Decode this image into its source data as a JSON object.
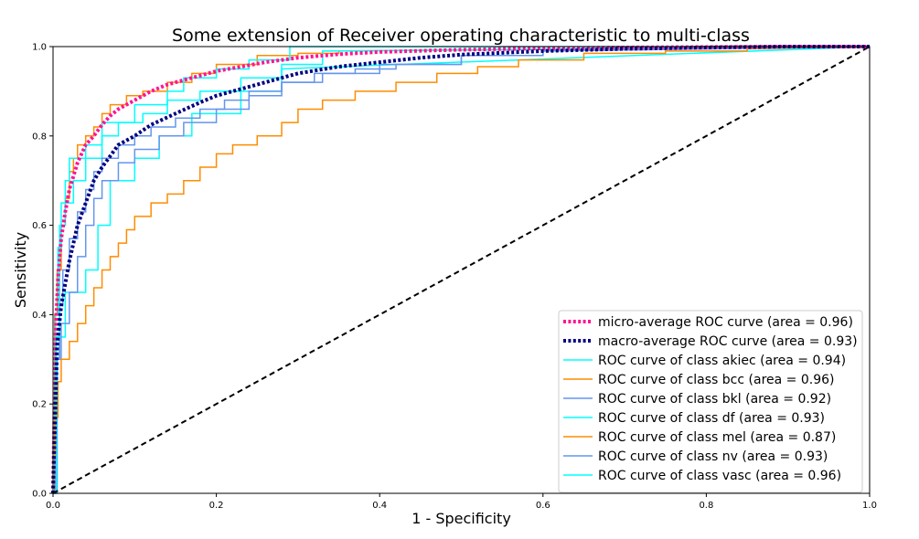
{
  "chart_data": {
    "type": "line",
    "title": "Some extension of Receiver operating characteristic to multi-class",
    "xlabel": "1 - Specificity",
    "ylabel": "Sensitivity",
    "xlim": [
      0.0,
      1.0
    ],
    "ylim": [
      0.0,
      1.0
    ],
    "xticks": [
      "0.0",
      "0.2",
      "0.4",
      "0.6",
      "0.8",
      "1.0"
    ],
    "yticks": [
      "0.0",
      "0.2",
      "0.4",
      "0.6",
      "0.8",
      "1.0"
    ],
    "grid": false,
    "legend_position": "lower-right",
    "series": [
      {
        "name": "micro-average ROC curve (area = 0.96)",
        "color": "#ff1493",
        "style": "dotted",
        "width": 4,
        "step": false,
        "x": [
          0,
          0.003,
          0.006,
          0.01,
          0.015,
          0.02,
          0.03,
          0.04,
          0.05,
          0.06,
          0.07,
          0.08,
          0.1,
          0.12,
          0.14,
          0.16,
          0.18,
          0.2,
          0.23,
          0.26,
          0.3,
          0.35,
          0.4,
          0.5,
          0.6,
          0.7,
          0.8,
          0.9,
          1.0
        ],
        "y": [
          0,
          0.35,
          0.48,
          0.57,
          0.63,
          0.68,
          0.74,
          0.78,
          0.8,
          0.825,
          0.845,
          0.86,
          0.88,
          0.9,
          0.915,
          0.925,
          0.935,
          0.945,
          0.955,
          0.965,
          0.975,
          0.983,
          0.988,
          0.993,
          0.996,
          0.998,
          0.999,
          1.0,
          1.0
        ]
      },
      {
        "name": "macro-average ROC curve (area = 0.93)",
        "color": "#000080",
        "style": "dotted",
        "width": 4,
        "step": false,
        "x": [
          0,
          0.005,
          0.01,
          0.02,
          0.03,
          0.04,
          0.05,
          0.06,
          0.07,
          0.08,
          0.1,
          0.12,
          0.15,
          0.18,
          0.2,
          0.23,
          0.26,
          0.3,
          0.35,
          0.4,
          0.45,
          0.5,
          0.6,
          0.7,
          0.8,
          0.9,
          1.0
        ],
        "y": [
          0,
          0.33,
          0.42,
          0.52,
          0.6,
          0.65,
          0.7,
          0.73,
          0.755,
          0.78,
          0.8,
          0.825,
          0.85,
          0.875,
          0.89,
          0.905,
          0.92,
          0.94,
          0.955,
          0.965,
          0.975,
          0.982,
          0.99,
          0.995,
          0.998,
          1.0,
          1.0
        ]
      },
      {
        "name": "ROC curve of class akiec (area = 0.94)",
        "color": "#00ffff",
        "style": "solid",
        "width": 1.5,
        "step": true,
        "x": [
          0,
          0.004,
          0.004,
          0.008,
          0.008,
          0.015,
          0.015,
          0.04,
          0.04,
          0.055,
          0.055,
          0.07,
          0.07,
          0.1,
          0.1,
          0.13,
          0.13,
          0.17,
          0.17,
          0.23,
          0.23,
          0.28,
          0.28,
          1.0
        ],
        "y": [
          0,
          0,
          0.3,
          0.3,
          0.35,
          0.35,
          0.45,
          0.45,
          0.5,
          0.5,
          0.6,
          0.6,
          0.7,
          0.7,
          0.75,
          0.75,
          0.8,
          0.8,
          0.85,
          0.85,
          0.9,
          0.9,
          0.95,
          1.0
        ]
      },
      {
        "name": "ROC curve of class bcc (area = 0.96)",
        "color": "#ff8c00",
        "style": "solid",
        "width": 1.5,
        "step": true,
        "x": [
          0,
          0.002,
          0.002,
          0.005,
          0.005,
          0.01,
          0.01,
          0.015,
          0.015,
          0.02,
          0.02,
          0.025,
          0.025,
          0.03,
          0.03,
          0.04,
          0.04,
          0.05,
          0.05,
          0.06,
          0.06,
          0.07,
          0.07,
          0.09,
          0.09,
          0.11,
          0.11,
          0.14,
          0.14,
          0.17,
          0.17,
          0.2,
          0.2,
          0.25,
          0.25,
          0.3,
          0.3,
          0.35,
          0.35,
          1.0
        ],
        "y": [
          0,
          0,
          0.4,
          0.4,
          0.5,
          0.5,
          0.6,
          0.6,
          0.66,
          0.66,
          0.72,
          0.72,
          0.75,
          0.75,
          0.78,
          0.78,
          0.8,
          0.8,
          0.82,
          0.82,
          0.85,
          0.85,
          0.87,
          0.87,
          0.89,
          0.89,
          0.9,
          0.9,
          0.92,
          0.92,
          0.94,
          0.94,
          0.96,
          0.96,
          0.98,
          0.98,
          0.985,
          0.985,
          0.99,
          1.0
        ]
      },
      {
        "name": "ROC curve of class bkl (area = 0.92)",
        "color": "#6495ed",
        "style": "solid",
        "width": 1.5,
        "step": true,
        "x": [
          0,
          0.005,
          0.005,
          0.01,
          0.01,
          0.02,
          0.02,
          0.03,
          0.03,
          0.04,
          0.04,
          0.05,
          0.05,
          0.06,
          0.06,
          0.08,
          0.08,
          0.1,
          0.1,
          0.13,
          0.13,
          0.16,
          0.16,
          0.2,
          0.2,
          0.24,
          0.24,
          0.28,
          0.28,
          0.33,
          0.33,
          0.4,
          0.4,
          0.5,
          0.5,
          0.6,
          0.6,
          1.0
        ],
        "y": [
          0,
          0,
          0.3,
          0.3,
          0.38,
          0.38,
          0.45,
          0.45,
          0.53,
          0.53,
          0.6,
          0.6,
          0.66,
          0.66,
          0.7,
          0.7,
          0.74,
          0.74,
          0.77,
          0.77,
          0.8,
          0.8,
          0.83,
          0.83,
          0.86,
          0.86,
          0.89,
          0.89,
          0.92,
          0.92,
          0.94,
          0.94,
          0.96,
          0.96,
          0.98,
          0.98,
          0.99,
          1.0
        ]
      },
      {
        "name": "ROC curve of class df (area = 0.93)",
        "color": "#00ffff",
        "style": "solid",
        "width": 1.5,
        "step": true,
        "x": [
          0,
          0.003,
          0.003,
          0.006,
          0.006,
          0.01,
          0.01,
          0.025,
          0.025,
          0.04,
          0.04,
          0.06,
          0.06,
          0.08,
          0.08,
          0.11,
          0.11,
          0.14,
          0.14,
          0.18,
          0.18,
          0.23,
          0.23,
          0.28,
          0.28,
          0.33,
          0.33,
          1.0
        ],
        "y": [
          0,
          0,
          0.4,
          0.4,
          0.55,
          0.55,
          0.65,
          0.65,
          0.7,
          0.7,
          0.75,
          0.75,
          0.8,
          0.8,
          0.83,
          0.83,
          0.85,
          0.85,
          0.88,
          0.88,
          0.9,
          0.9,
          0.93,
          0.93,
          0.96,
          0.96,
          0.99,
          1.0
        ]
      },
      {
        "name": "ROC curve of class mel (area = 0.87)",
        "color": "#ff8c00",
        "style": "solid",
        "width": 1.5,
        "step": true,
        "x": [
          0,
          0.003,
          0.003,
          0.006,
          0.006,
          0.01,
          0.01,
          0.02,
          0.02,
          0.03,
          0.03,
          0.04,
          0.04,
          0.05,
          0.05,
          0.06,
          0.06,
          0.07,
          0.07,
          0.08,
          0.08,
          0.09,
          0.09,
          0.1,
          0.1,
          0.12,
          0.12,
          0.14,
          0.14,
          0.16,
          0.16,
          0.18,
          0.18,
          0.2,
          0.2,
          0.22,
          0.22,
          0.25,
          0.25,
          0.28,
          0.28,
          0.3,
          0.3,
          0.33,
          0.33,
          0.37,
          0.37,
          0.42,
          0.42,
          0.47,
          0.47,
          0.52,
          0.52,
          0.57,
          0.57,
          0.65,
          0.65,
          0.75,
          0.75,
          0.85,
          0.85,
          1.0
        ],
        "y": [
          0,
          0,
          0.17,
          0.17,
          0.25,
          0.25,
          0.3,
          0.3,
          0.34,
          0.34,
          0.38,
          0.38,
          0.42,
          0.42,
          0.46,
          0.46,
          0.5,
          0.5,
          0.53,
          0.53,
          0.56,
          0.56,
          0.59,
          0.59,
          0.62,
          0.62,
          0.65,
          0.65,
          0.67,
          0.67,
          0.7,
          0.7,
          0.73,
          0.73,
          0.76,
          0.76,
          0.78,
          0.78,
          0.8,
          0.8,
          0.83,
          0.83,
          0.86,
          0.86,
          0.88,
          0.88,
          0.9,
          0.9,
          0.92,
          0.92,
          0.94,
          0.94,
          0.955,
          0.955,
          0.97,
          0.97,
          0.985,
          0.985,
          0.99,
          0.99,
          0.995,
          1.0
        ]
      },
      {
        "name": "ROC curve of class nv (area = 0.93)",
        "color": "#6495ed",
        "style": "solid",
        "width": 1.5,
        "step": true,
        "x": [
          0,
          0.002,
          0.002,
          0.004,
          0.004,
          0.008,
          0.008,
          0.012,
          0.012,
          0.02,
          0.02,
          0.03,
          0.03,
          0.04,
          0.04,
          0.05,
          0.05,
          0.06,
          0.06,
          0.08,
          0.08,
          0.1,
          0.1,
          0.12,
          0.12,
          0.15,
          0.15,
          0.18,
          0.18,
          0.21,
          0.21,
          0.24,
          0.24,
          0.28,
          0.28,
          0.32,
          0.32,
          0.37,
          0.37,
          0.42,
          0.42,
          0.5,
          0.5,
          0.6,
          0.6,
          1.0
        ],
        "y": [
          0,
          0,
          0.08,
          0.08,
          0.3,
          0.3,
          0.42,
          0.42,
          0.5,
          0.5,
          0.57,
          0.57,
          0.63,
          0.63,
          0.68,
          0.68,
          0.72,
          0.72,
          0.75,
          0.75,
          0.78,
          0.78,
          0.8,
          0.8,
          0.82,
          0.82,
          0.84,
          0.84,
          0.86,
          0.86,
          0.88,
          0.88,
          0.9,
          0.9,
          0.92,
          0.92,
          0.94,
          0.94,
          0.95,
          0.95,
          0.96,
          0.96,
          0.98,
          0.98,
          0.99,
          1.0
        ]
      },
      {
        "name": "ROC curve of class vasc (area = 0.96)",
        "color": "#00ffff",
        "style": "solid",
        "width": 1.5,
        "step": true,
        "x": [
          0,
          0.004,
          0.004,
          0.008,
          0.008,
          0.015,
          0.015,
          0.02,
          0.02,
          0.04,
          0.04,
          0.06,
          0.06,
          0.1,
          0.1,
          0.14,
          0.14,
          0.16,
          0.16,
          0.2,
          0.2,
          0.24,
          0.24,
          0.29,
          0.29,
          1.0
        ],
        "y": [
          0,
          0,
          0.35,
          0.35,
          0.6,
          0.6,
          0.7,
          0.7,
          0.75,
          0.75,
          0.78,
          0.78,
          0.83,
          0.83,
          0.87,
          0.87,
          0.9,
          0.9,
          0.93,
          0.93,
          0.95,
          0.95,
          0.97,
          0.97,
          1.0,
          1.0
        ]
      },
      {
        "name": "",
        "color": "#000000",
        "style": "dashed",
        "width": 2,
        "step": false,
        "legend": false,
        "x": [
          0,
          1
        ],
        "y": [
          0,
          1
        ]
      }
    ]
  }
}
